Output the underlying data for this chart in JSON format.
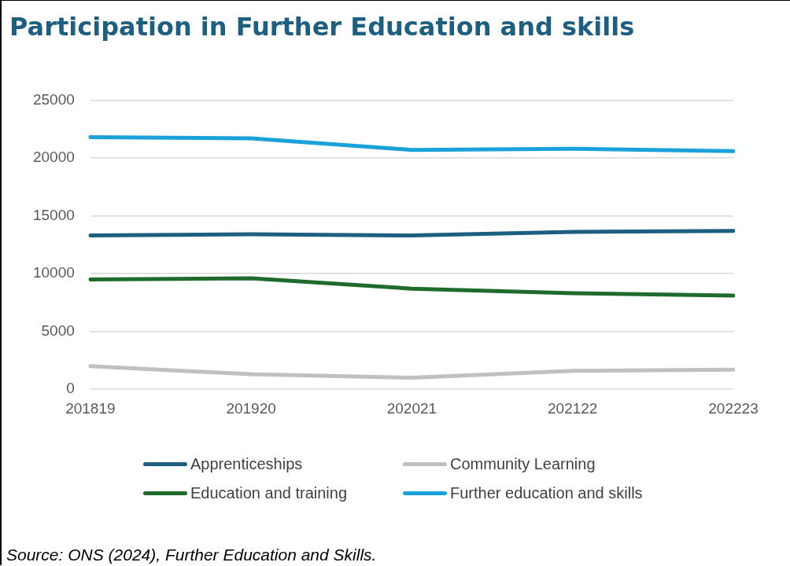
{
  "chart_data": {
    "type": "line",
    "title": "Participation in Further Education and skills",
    "categories": [
      "201819",
      "201920",
      "202021",
      "202122",
      "202223"
    ],
    "series": [
      {
        "name": "Apprenticeships",
        "color": "#1d5f80",
        "values": [
          13300,
          13400,
          13300,
          13600,
          13700
        ]
      },
      {
        "name": "Community Learning",
        "color": "#c0c0c0",
        "values": [
          2000,
          1300,
          1000,
          1600,
          1700
        ]
      },
      {
        "name": "Education and training",
        "color": "#1f6b2c",
        "values": [
          9500,
          9600,
          8700,
          8300,
          8100
        ]
      },
      {
        "name": "Further education and skills",
        "color": "#1ba1da",
        "values": [
          21800,
          21700,
          20700,
          20800,
          20600
        ]
      }
    ],
    "ylim": [
      0,
      25000
    ],
    "yticks": [
      0,
      5000,
      10000,
      15000,
      20000,
      25000
    ],
    "grid": "y",
    "legend": "bottom",
    "marker": "none",
    "line_style": "solid",
    "annotations": [
      "Source: ONS (2024), Further Education and Skills."
    ]
  }
}
